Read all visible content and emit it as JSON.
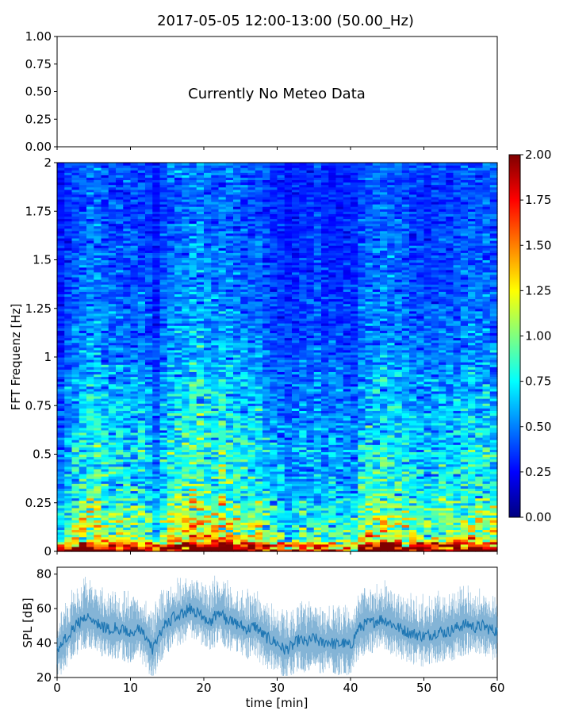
{
  "figure": {
    "title": "2017-05-05 12:00-13:00 (50.00_Hz)"
  },
  "chart_data": [
    {
      "type": "line",
      "panel": "meteo",
      "note": "Currently No Meteo Data",
      "ylim": [
        0,
        1
      ],
      "yticks": [
        "0.00",
        "0.25",
        "0.50",
        "0.75",
        "1.00"
      ],
      "xlim": [
        0,
        60
      ]
    },
    {
      "type": "heatmap",
      "panel": "spectrogram",
      "ylabel": "FFT Frequenz [Hz]",
      "ylim": [
        0,
        2
      ],
      "yticks": [
        "0",
        "0.25",
        "0.5",
        "0.75",
        "1",
        "1.25",
        "1.5",
        "1.75",
        "2"
      ],
      "xlim": [
        0,
        60
      ],
      "colorbar": {
        "range": [
          0,
          2
        ],
        "ticks": [
          "0.00",
          "0.25",
          "0.50",
          "0.75",
          "1.00",
          "1.25",
          "1.50",
          "1.75",
          "2.00"
        ],
        "colormap": "jet"
      },
      "profile_freq_hz": [
        0.0,
        0.02,
        0.05,
        0.1,
        0.15,
        0.2,
        0.25,
        0.3,
        0.4,
        0.5,
        0.6,
        0.75,
        0.9,
        1.0,
        1.2,
        1.4,
        1.6,
        1.8,
        2.0
      ],
      "profile_mean_intensity": [
        1.8,
        1.5,
        1.2,
        1.0,
        0.95,
        0.9,
        0.85,
        0.75,
        0.7,
        0.7,
        0.65,
        0.6,
        0.55,
        0.5,
        0.45,
        0.42,
        0.4,
        0.38,
        0.4
      ]
    },
    {
      "type": "line",
      "panel": "spl",
      "ylabel": "SPL [dB]",
      "xlabel": "time [min]",
      "ylim": [
        20,
        84
      ],
      "yticks": [
        "20",
        "40",
        "60",
        "80"
      ],
      "xlim": [
        0,
        60
      ],
      "xticks": [
        "0",
        "10",
        "20",
        "30",
        "40",
        "50",
        "60"
      ],
      "color": "#1f77b4",
      "x": [
        0,
        1,
        2,
        3,
        4,
        5,
        6,
        7,
        8,
        9,
        10,
        11,
        12,
        13,
        14,
        15,
        16,
        17,
        18,
        19,
        20,
        21,
        22,
        23,
        24,
        25,
        26,
        27,
        28,
        29,
        30,
        31,
        32,
        33,
        34,
        35,
        36,
        37,
        38,
        39,
        40,
        41,
        42,
        43,
        44,
        45,
        46,
        47,
        48,
        49,
        50,
        51,
        52,
        53,
        54,
        55,
        56,
        57,
        58,
        59,
        60
      ],
      "y": [
        35,
        42,
        48,
        52,
        55,
        54,
        50,
        48,
        49,
        47,
        46,
        48,
        44,
        36,
        46,
        52,
        55,
        56,
        60,
        58,
        55,
        53,
        58,
        54,
        52,
        50,
        48,
        50,
        45,
        42,
        40,
        36,
        38,
        42,
        40,
        43,
        40,
        41,
        39,
        40,
        38,
        48,
        51,
        52,
        54,
        53,
        50,
        48,
        46,
        45,
        44,
        45,
        47,
        46,
        48,
        50,
        51,
        49,
        50,
        48,
        47
      ]
    }
  ]
}
